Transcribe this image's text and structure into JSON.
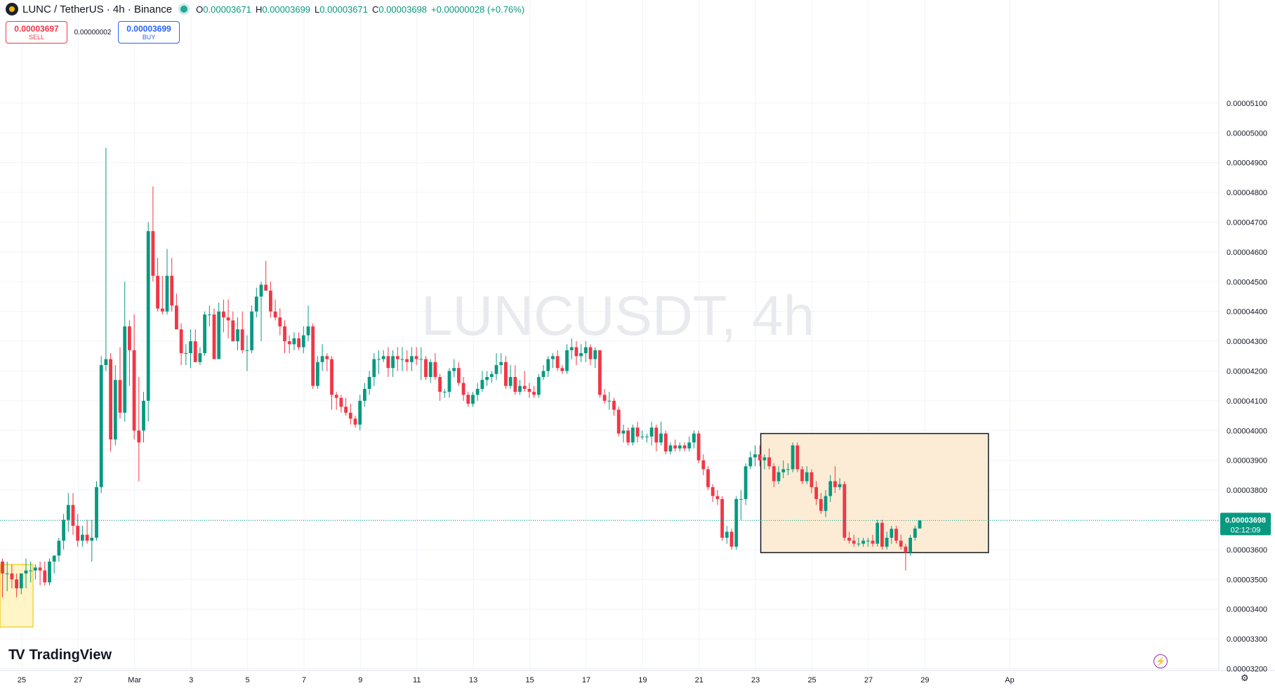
{
  "header": {
    "symbol": "LUNC / TetherUS · 4h · Binance",
    "o_label": "O",
    "o_value": "0.00003671",
    "h_label": "H",
    "h_value": "0.00003699",
    "l_label": "L",
    "l_value": "0.00003671",
    "c_label": "C",
    "c_value": "0.00003698",
    "change": "+0.00000028 (+0.76%)"
  },
  "trade": {
    "sell_price": "0.00003697",
    "sell_label": "SELL",
    "spread": "0.00000002",
    "buy_price": "0.00003699",
    "buy_label": "BUY"
  },
  "brand": {
    "name": "TradingView"
  },
  "colors": {
    "up": "#089981",
    "down": "#f23645",
    "grid": "#f0f3fa",
    "box_fill": "#fdecd5",
    "yellow_box": "#fff5c7"
  },
  "chart_data": {
    "type": "candlestick",
    "watermark": "LUNCUSDT, 4h",
    "y_ticks": [
      "0.00005100",
      "0.00005000",
      "0.00004900",
      "0.00004800",
      "0.00004700",
      "0.00004600",
      "0.00004500",
      "0.00004400",
      "0.00004300",
      "0.00004200",
      "0.00004100",
      "0.00004000",
      "0.00003900",
      "0.00003800",
      "0.00003700",
      "0.00003600",
      "0.00003500",
      "0.00003400",
      "0.00003300",
      "0.00003200"
    ],
    "ylim": [
      3.18e-05,
      5.18e-05
    ],
    "x_ticks": [
      "3",
      "25",
      "27",
      "Mar",
      "3",
      "5",
      "7",
      "9",
      "11",
      "13",
      "15",
      "17",
      "19",
      "21",
      "23",
      "25",
      "27",
      "29",
      "Ap"
    ],
    "x_tick_bars": [
      -7.9,
      4.1,
      16.1,
      28.1,
      40.1,
      52.1,
      64.1,
      76.1,
      88.1,
      100.1,
      112.1,
      124.1,
      136.1,
      148.1,
      160.1,
      172.1,
      184.1,
      196.1,
      214.1
    ],
    "current_price": "0.00003698",
    "countdown": "02:12:09",
    "candles": [
      [
        3.56e-05,
        3.57e-05,
        3.44e-05,
        3.52e-05
      ],
      [
        3.52e-05,
        3.56e-05,
        3.46e-05,
        3.52e-05
      ],
      [
        3.52e-05,
        3.55e-05,
        3.47e-05,
        3.5e-05
      ],
      [
        3.5e-05,
        3.52e-05,
        3.44e-05,
        3.47e-05
      ],
      [
        3.47e-05,
        3.52e-05,
        3.45e-05,
        3.52e-05
      ],
      [
        3.52e-05,
        3.57e-05,
        3.47e-05,
        3.53e-05
      ],
      [
        3.53e-05,
        3.56e-05,
        3.49e-05,
        3.53e-05
      ],
      [
        3.53e-05,
        3.55e-05,
        3.5e-05,
        3.54e-05
      ],
      [
        3.54e-05,
        3.56e-05,
        3.48e-05,
        3.53e-05
      ],
      [
        3.53e-05,
        3.56e-05,
        3.48e-05,
        3.49e-05
      ],
      [
        3.49e-05,
        3.57e-05,
        3.48e-05,
        3.56e-05
      ],
      [
        3.56e-05,
        3.58e-05,
        3.52e-05,
        3.58e-05
      ],
      [
        3.58e-05,
        3.64e-05,
        3.56e-05,
        3.63e-05
      ],
      [
        3.63e-05,
        3.72e-05,
        3.6e-05,
        3.7e-05
      ],
      [
        3.7e-05,
        3.79e-05,
        3.66e-05,
        3.75e-05
      ],
      [
        3.75e-05,
        3.79e-05,
        3.65e-05,
        3.68e-05
      ],
      [
        3.68e-05,
        3.72e-05,
        3.61e-05,
        3.63e-05
      ],
      [
        3.63e-05,
        3.68e-05,
        3.61e-05,
        3.65e-05
      ],
      [
        3.65e-05,
        3.7e-05,
        3.62e-05,
        3.63e-05
      ],
      [
        3.63e-05,
        3.7e-05,
        3.56e-05,
        3.64e-05
      ],
      [
        3.64e-05,
        3.83e-05,
        3.63e-05,
        3.81e-05
      ],
      [
        3.81e-05,
        4.25e-05,
        3.79e-05,
        4.22e-05
      ],
      [
        4.22e-05,
        4.95e-05,
        4.2e-05,
        4.24e-05
      ],
      [
        4.24e-05,
        4.26e-05,
        3.93e-05,
        3.97e-05
      ],
      [
        3.97e-05,
        4.22e-05,
        3.95e-05,
        4.17e-05
      ],
      [
        4.17e-05,
        4.28e-05,
        4.04e-05,
        4.06e-05
      ],
      [
        4.06e-05,
        4.5e-05,
        4.03e-05,
        4.35e-05
      ],
      [
        4.35e-05,
        4.37e-05,
        4.15e-05,
        4.27e-05
      ],
      [
        4.27e-05,
        4.39e-05,
        3.97e-05,
        4e-05
      ],
      [
        4e-05,
        4.18e-05,
        3.83e-05,
        3.96e-05
      ],
      [
        4e-05,
        4.13e-05,
        3.96e-05,
        4.1e-05
      ],
      [
        4.1e-05,
        4.7e-05,
        4.03e-05,
        4.67e-05
      ],
      [
        4.67e-05,
        4.82e-05,
        4.5e-05,
        4.52e-05
      ],
      [
        4.52e-05,
        4.58e-05,
        4.4e-05,
        4.41e-05
      ],
      [
        4.41e-05,
        4.52e-05,
        4.39e-05,
        4.4e-05
      ],
      [
        4.4e-05,
        4.61e-05,
        4.39e-05,
        4.52e-05
      ],
      [
        4.52e-05,
        4.58e-05,
        4.4e-05,
        4.42e-05
      ],
      [
        4.42e-05,
        4.46e-05,
        4.34e-05,
        4.34e-05
      ],
      [
        4.34e-05,
        4.36e-05,
        4.22e-05,
        4.26e-05
      ],
      [
        4.26e-05,
        4.29e-05,
        4.22e-05,
        4.26e-05
      ],
      [
        4.26e-05,
        4.34e-05,
        4.21e-05,
        4.3e-05
      ],
      [
        4.3e-05,
        4.34e-05,
        4.23e-05,
        4.23e-05
      ],
      [
        4.23e-05,
        4.28e-05,
        4.22e-05,
        4.26e-05
      ],
      [
        4.26e-05,
        4.4e-05,
        4.25e-05,
        4.39e-05
      ],
      [
        4.39e-05,
        4.42e-05,
        4.35e-05,
        4.39e-05
      ],
      [
        4.39e-05,
        4.41e-05,
        4.24e-05,
        4.24e-05
      ],
      [
        4.24e-05,
        4.43e-05,
        4.24e-05,
        4.4e-05
      ],
      [
        4.4e-05,
        4.44e-05,
        4.33e-05,
        4.38e-05
      ],
      [
        4.38e-05,
        4.44e-05,
        4.31e-05,
        4.37e-05
      ],
      [
        4.37e-05,
        4.4e-05,
        4.3e-05,
        4.3e-05
      ],
      [
        4.3e-05,
        4.38e-05,
        4.27e-05,
        4.34e-05
      ],
      [
        4.34e-05,
        4.4e-05,
        4.26e-05,
        4.27e-05
      ],
      [
        4.27e-05,
        4.32e-05,
        4.2e-05,
        4.27e-05
      ],
      [
        4.27e-05,
        4.42e-05,
        4.26e-05,
        4.4e-05
      ],
      [
        4.4e-05,
        4.48e-05,
        4.38e-05,
        4.45e-05
      ],
      [
        4.45e-05,
        4.5e-05,
        4.3e-05,
        4.49e-05
      ],
      [
        4.49e-05,
        4.57e-05,
        4.47e-05,
        4.47e-05
      ],
      [
        4.47e-05,
        4.5e-05,
        4.38e-05,
        4.4e-05
      ],
      [
        4.4e-05,
        4.44e-05,
        4.37e-05,
        4.38e-05
      ],
      [
        4.38e-05,
        4.41e-05,
        4.32e-05,
        4.35e-05
      ],
      [
        4.35e-05,
        4.37e-05,
        4.26e-05,
        4.3e-05
      ],
      [
        4.3e-05,
        4.32e-05,
        4.26e-05,
        4.29e-05
      ],
      [
        4.29e-05,
        4.33e-05,
        4.27e-05,
        4.31e-05
      ],
      [
        4.31e-05,
        4.33e-05,
        4.27e-05,
        4.28e-05
      ],
      [
        4.28e-05,
        4.35e-05,
        4.26e-05,
        4.32e-05
      ],
      [
        4.32e-05,
        4.42e-05,
        4.3e-05,
        4.35e-05
      ],
      [
        4.35e-05,
        4.36e-05,
        4.14e-05,
        4.15e-05
      ],
      [
        4.15e-05,
        4.25e-05,
        4.14e-05,
        4.23e-05
      ],
      [
        4.23e-05,
        4.29e-05,
        4.2e-05,
        4.25e-05
      ],
      [
        4.25e-05,
        4.26e-05,
        4.2e-05,
        4.24e-05
      ],
      [
        4.24e-05,
        4.25e-05,
        4.07e-05,
        4.12e-05
      ],
      [
        4.12e-05,
        4.13e-05,
        4.07e-05,
        4.11e-05
      ],
      [
        4.11e-05,
        4.12e-05,
        4.06e-05,
        4.08e-05
      ],
      [
        4.08e-05,
        4.11e-05,
        4.05e-05,
        4.06e-05
      ],
      [
        4.06e-05,
        4.09e-05,
        4.02e-05,
        4.04e-05
      ],
      [
        4.04e-05,
        4.05e-05,
        4.01e-05,
        4.02e-05
      ],
      [
        4.02e-05,
        4.12e-05,
        4e-05,
        4.1e-05
      ],
      [
        4.1e-05,
        4.16e-05,
        4.08e-05,
        4.14e-05
      ],
      [
        4.14e-05,
        4.2e-05,
        4.12e-05,
        4.18e-05
      ],
      [
        4.18e-05,
        4.26e-05,
        4.15e-05,
        4.24e-05
      ],
      [
        4.24e-05,
        4.27e-05,
        4.19e-05,
        4.24e-05
      ],
      [
        4.24e-05,
        4.27e-05,
        4.23e-05,
        4.25e-05
      ],
      [
        4.25e-05,
        4.28e-05,
        4.18e-05,
        4.21e-05
      ],
      [
        4.21e-05,
        4.27e-05,
        4.18e-05,
        4.25e-05
      ],
      [
        4.25e-05,
        4.28e-05,
        4.2e-05,
        4.24e-05
      ],
      [
        4.24e-05,
        4.28e-05,
        4.2e-05,
        4.24e-05
      ],
      [
        4.24e-05,
        4.27e-05,
        4.2e-05,
        4.23e-05
      ],
      [
        4.23e-05,
        4.28e-05,
        4.2e-05,
        4.25e-05
      ],
      [
        4.25e-05,
        4.28e-05,
        4.22e-05,
        4.24e-05
      ],
      [
        4.24e-05,
        4.28e-05,
        4.17e-05,
        4.24e-05
      ],
      [
        4.24e-05,
        4.25e-05,
        4.17e-05,
        4.18e-05
      ],
      [
        4.18e-05,
        4.24e-05,
        4.16e-05,
        4.23e-05
      ],
      [
        4.23e-05,
        4.26e-05,
        4.17e-05,
        4.18e-05
      ],
      [
        4.18e-05,
        4.19e-05,
        4.1e-05,
        4.13e-05
      ],
      [
        4.13e-05,
        4.14e-05,
        4.11e-05,
        4.13e-05
      ],
      [
        4.13e-05,
        4.21e-05,
        4.11e-05,
        4.2e-05
      ],
      [
        4.2e-05,
        4.24e-05,
        4.18e-05,
        4.21e-05
      ],
      [
        4.21e-05,
        4.23e-05,
        4.15e-05,
        4.16e-05
      ],
      [
        4.16e-05,
        4.18e-05,
        4.1e-05,
        4.12e-05
      ],
      [
        4.12e-05,
        4.13e-05,
        4.08e-05,
        4.09e-05
      ],
      [
        4.09e-05,
        4.13e-05,
        4.08e-05,
        4.12e-05
      ],
      [
        4.12e-05,
        4.16e-05,
        4.1e-05,
        4.14e-05
      ],
      [
        4.14e-05,
        4.2e-05,
        4.13e-05,
        4.17e-05
      ],
      [
        4.17e-05,
        4.2e-05,
        4.15e-05,
        4.18e-05
      ],
      [
        4.18e-05,
        4.2e-05,
        4.16e-05,
        4.19e-05
      ],
      [
        4.19e-05,
        4.26e-05,
        4.17e-05,
        4.22e-05
      ],
      [
        4.22e-05,
        4.26e-05,
        4.19e-05,
        4.23e-05
      ],
      [
        4.23e-05,
        4.25e-05,
        4.14e-05,
        4.15e-05
      ],
      [
        4.15e-05,
        4.22e-05,
        4.14e-05,
        4.18e-05
      ],
      [
        4.18e-05,
        4.22e-05,
        4.12e-05,
        4.13e-05
      ],
      [
        4.13e-05,
        4.17e-05,
        4.12e-05,
        4.15e-05
      ],
      [
        4.15e-05,
        4.2e-05,
        4.13e-05,
        4.14e-05
      ],
      [
        4.14e-05,
        4.16e-05,
        4.11e-05,
        4.13e-05
      ],
      [
        4.13e-05,
        4.15e-05,
        4.11e-05,
        4.12e-05
      ],
      [
        4.12e-05,
        4.19e-05,
        4.11e-05,
        4.18e-05
      ],
      [
        4.18e-05,
        4.22e-05,
        4.17e-05,
        4.2e-05
      ],
      [
        4.2e-05,
        4.25e-05,
        4.18e-05,
        4.24e-05
      ],
      [
        4.24e-05,
        4.26e-05,
        4.21e-05,
        4.25e-05
      ],
      [
        4.25e-05,
        4.27e-05,
        4.2e-05,
        4.21e-05
      ],
      [
        4.21e-05,
        4.22e-05,
        4.19e-05,
        4.2e-05
      ],
      [
        4.2e-05,
        4.29e-05,
        4.19e-05,
        4.27e-05
      ],
      [
        4.27e-05,
        4.31e-05,
        4.24e-05,
        4.28e-05
      ],
      [
        4.28e-05,
        4.3e-05,
        4.22e-05,
        4.25e-05
      ],
      [
        4.25e-05,
        4.29e-05,
        4.23e-05,
        4.26e-05
      ],
      [
        4.26e-05,
        4.3e-05,
        4.23e-05,
        4.28e-05
      ],
      [
        4.28e-05,
        4.29e-05,
        4.22e-05,
        4.24e-05
      ],
      [
        4.24e-05,
        4.28e-05,
        4.21e-05,
        4.27e-05
      ],
      [
        4.27e-05,
        4.27e-05,
        4.11e-05,
        4.12e-05
      ],
      [
        4.12e-05,
        4.14e-05,
        4.09e-05,
        4.1e-05
      ],
      [
        4.1e-05,
        4.13e-05,
        4.07e-05,
        4.1e-05
      ],
      [
        4.1e-05,
        4.11e-05,
        4.05e-05,
        4.07e-05
      ],
      [
        4.07e-05,
        4.08e-05,
        3.98e-05,
        3.99e-05
      ],
      [
        3.99e-05,
        4.02e-05,
        3.96e-05,
        4e-05
      ],
      [
        4e-05,
        4.01e-05,
        3.95e-05,
        3.96e-05
      ],
      [
        3.96e-05,
        4.02e-05,
        3.95e-05,
        4.01e-05
      ],
      [
        4.01e-05,
        4.03e-05,
        3.96e-05,
        3.98e-05
      ],
      [
        3.98e-05,
        4e-05,
        3.97e-05,
        3.98e-05
      ],
      [
        3.98e-05,
        3.99e-05,
        3.96e-05,
        3.98e-05
      ],
      [
        3.98e-05,
        4.03e-05,
        3.95e-05,
        4.01e-05
      ],
      [
        4.01e-05,
        4.02e-05,
        3.93e-05,
        3.96e-05
      ],
      [
        3.96e-05,
        4.03e-05,
        3.95e-05,
        3.99e-05
      ],
      [
        3.99e-05,
        4e-05,
        3.92e-05,
        3.93e-05
      ],
      [
        3.93e-05,
        3.96e-05,
        3.92e-05,
        3.95e-05
      ],
      [
        3.95e-05,
        3.97e-05,
        3.93e-05,
        3.94e-05
      ],
      [
        3.94e-05,
        3.96e-05,
        3.93e-05,
        3.95e-05
      ],
      [
        3.95e-05,
        3.96e-05,
        3.93e-05,
        3.94e-05
      ],
      [
        3.94e-05,
        3.98e-05,
        3.93e-05,
        3.96e-05
      ],
      [
        3.96e-05,
        4e-05,
        3.94e-05,
        3.99e-05
      ],
      [
        3.99e-05,
        4e-05,
        3.89e-05,
        3.9e-05
      ],
      [
        3.9e-05,
        3.92e-05,
        3.85e-05,
        3.87e-05
      ],
      [
        3.87e-05,
        3.88e-05,
        3.8e-05,
        3.81e-05
      ],
      [
        3.81e-05,
        3.82e-05,
        3.76e-05,
        3.78e-05
      ],
      [
        3.78e-05,
        3.8e-05,
        3.75e-05,
        3.77e-05
      ],
      [
        3.77e-05,
        3.78e-05,
        3.63e-05,
        3.64e-05
      ],
      [
        3.64e-05,
        3.68e-05,
        3.62e-05,
        3.66e-05
      ],
      [
        3.66e-05,
        3.67e-05,
        3.6e-05,
        3.61e-05
      ],
      [
        3.61e-05,
        3.78e-05,
        3.6e-05,
        3.77e-05
      ],
      [
        3.77e-05,
        3.8e-05,
        3.7e-05,
        3.77e-05
      ],
      [
        3.77e-05,
        3.89e-05,
        3.75e-05,
        3.88e-05
      ],
      [
        3.88e-05,
        3.93e-05,
        3.87e-05,
        3.91e-05
      ],
      [
        3.91e-05,
        3.95e-05,
        3.88e-05,
        3.92e-05
      ],
      [
        3.92e-05,
        3.95e-05,
        3.88e-05,
        3.9e-05
      ],
      [
        3.9e-05,
        3.92e-05,
        3.87e-05,
        3.91e-05
      ],
      [
        3.91e-05,
        3.94e-05,
        3.87e-05,
        3.88e-05
      ],
      [
        3.88e-05,
        3.89e-05,
        3.81e-05,
        3.83e-05
      ],
      [
        3.83e-05,
        3.88e-05,
        3.82e-05,
        3.86e-05
      ],
      [
        3.86e-05,
        3.9e-05,
        3.84e-05,
        3.87e-05
      ],
      [
        3.87e-05,
        3.89e-05,
        3.85e-05,
        3.87e-05
      ],
      [
        3.87e-05,
        3.96e-05,
        3.86e-05,
        3.95e-05
      ],
      [
        3.95e-05,
        3.96e-05,
        3.86e-05,
        3.87e-05
      ],
      [
        3.87e-05,
        3.88e-05,
        3.82e-05,
        3.83e-05
      ],
      [
        3.83e-05,
        3.88e-05,
        3.82e-05,
        3.86e-05
      ],
      [
        3.86e-05,
        3.87e-05,
        3.79e-05,
        3.81e-05
      ],
      [
        3.81e-05,
        3.83e-05,
        3.75e-05,
        3.77e-05
      ],
      [
        3.77e-05,
        3.79e-05,
        3.72e-05,
        3.73e-05
      ],
      [
        3.73e-05,
        3.8e-05,
        3.71e-05,
        3.78e-05
      ],
      [
        3.78e-05,
        3.85e-05,
        3.76e-05,
        3.83e-05
      ],
      [
        3.83e-05,
        3.88e-05,
        3.79e-05,
        3.81e-05
      ],
      [
        3.81e-05,
        3.84e-05,
        3.8e-05,
        3.82e-05
      ],
      [
        3.82e-05,
        3.83e-05,
        3.63e-05,
        3.64e-05
      ],
      [
        3.64e-05,
        3.66e-05,
        3.62e-05,
        3.63e-05
      ],
      [
        3.63e-05,
        3.65e-05,
        3.61e-05,
        3.62e-05
      ],
      [
        3.62e-05,
        3.64e-05,
        3.61e-05,
        3.62e-05
      ],
      [
        3.62e-05,
        3.64e-05,
        3.61e-05,
        3.63e-05
      ],
      [
        3.63e-05,
        3.64e-05,
        3.61e-05,
        3.63e-05
      ],
      [
        3.63e-05,
        3.65e-05,
        3.61e-05,
        3.62e-05
      ],
      [
        3.62e-05,
        3.7e-05,
        3.61e-05,
        3.69e-05
      ],
      [
        3.69e-05,
        3.7e-05,
        3.6e-05,
        3.61e-05
      ],
      [
        3.61e-05,
        3.66e-05,
        3.6e-05,
        3.64e-05
      ],
      [
        3.64e-05,
        3.68e-05,
        3.62e-05,
        3.67e-05
      ],
      [
        3.67e-05,
        3.68e-05,
        3.62e-05,
        3.63e-05
      ],
      [
        3.63e-05,
        3.65e-05,
        3.6e-05,
        3.61e-05
      ],
      [
        3.61e-05,
        3.62e-05,
        3.53e-05,
        3.59e-05
      ],
      [
        3.59e-05,
        3.65e-05,
        3.58e-05,
        3.64e-05
      ],
      [
        3.64e-05,
        3.68e-05,
        3.63e-05,
        3.671e-05
      ],
      [
        3.671e-05,
        3.699e-05,
        3.671e-05,
        3.698e-05
      ]
    ]
  }
}
